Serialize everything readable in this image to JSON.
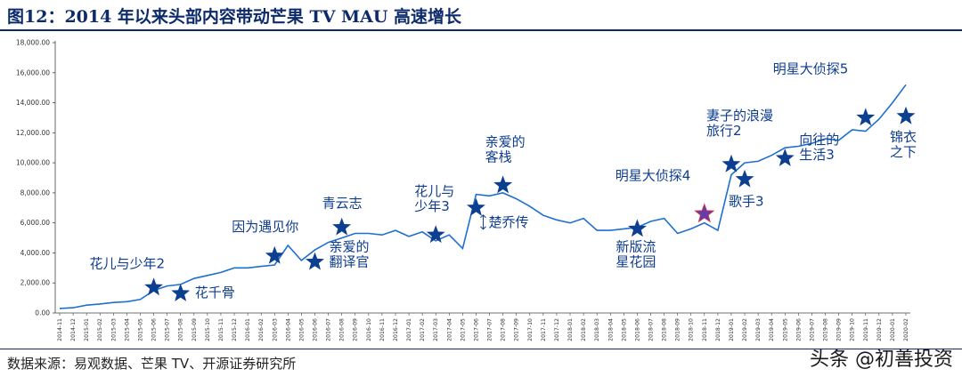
{
  "title": "图12：2014 年以来头部内容带动芒果 TV MAU 高速增长",
  "source": "数据来源：易观数据、芒果 TV、开源证券研究所",
  "watermark": "头条 @初善投资",
  "colors": {
    "line": "#1e6fd0",
    "star": "#0d3f91",
    "text": "#0e3d8f",
    "axis": "#444444"
  },
  "chart_data": {
    "type": "line",
    "title": "2014 年以来头部内容带动芒果 TV MAU 高速增长",
    "ylim": [
      0,
      18000
    ],
    "yticks": [
      0,
      2000,
      4000,
      6000,
      8000,
      10000,
      12000,
      14000,
      16000,
      18000
    ],
    "ytick_labels": [
      "0.00",
      "2,000.00",
      "4,000.00",
      "6,000.00",
      "8,000.00",
      "10,000.00",
      "12,000.00",
      "14,000.00",
      "16,000.00",
      "18,000.00"
    ],
    "x": [
      "2014-11",
      "2014-12",
      "2015-01",
      "2015-02",
      "2015-03",
      "2015-04",
      "2015-05",
      "2015-06",
      "2015-07",
      "2015-08",
      "2015-09",
      "2015-10",
      "2015-11",
      "2015-12",
      "2016-01",
      "2016-02",
      "2016-03",
      "2016-04",
      "2016-05",
      "2016-06",
      "2016-07",
      "2016-08",
      "2016-09",
      "2016-10",
      "2016-11",
      "2016-12",
      "2017-01",
      "2017-02",
      "2017-03",
      "2017-04",
      "2017-05",
      "2017-06",
      "2017-07",
      "2017-08",
      "2017-09",
      "2017-10",
      "2017-11",
      "2017-12",
      "2018-01",
      "2018-02",
      "2018-03",
      "2018-04",
      "2018-05",
      "2018-06",
      "2018-07",
      "2018-08",
      "2018-09",
      "2018-10",
      "2018-11",
      "2018-12",
      "2019-01",
      "2019-02",
      "2019-03",
      "2019-04",
      "2019-05",
      "2019-06",
      "2019-07",
      "2019-08",
      "2019-09",
      "2019-10",
      "2019-11",
      "2019-12",
      "2020-01",
      "2020-02"
    ],
    "series": [
      {
        "name": "MAU",
        "values": [
          300,
          350,
          520,
          600,
          700,
          750,
          900,
          1500,
          1800,
          1900,
          2300,
          2500,
          2700,
          3000,
          3000,
          3100,
          3200,
          4500,
          3500,
          4200,
          4700,
          5000,
          5300,
          5300,
          5200,
          5500,
          5100,
          5400,
          4800,
          5200,
          4300,
          7900,
          7800,
          8000,
          7600,
          7100,
          6500,
          6200,
          6000,
          6300,
          5500,
          5500,
          5600,
          5700,
          6100,
          6300,
          5300,
          5600,
          6000,
          5500,
          9200,
          10000,
          10100,
          10500,
          11000,
          11100,
          11300,
          11600,
          11500,
          12200,
          12100,
          12900,
          14000,
          15200
        ]
      }
    ],
    "annotations": [
      {
        "label": "花儿与少年2",
        "x_index": 7,
        "value": 1700
      },
      {
        "label": "花千骨",
        "x_index": 9,
        "value": 1300
      },
      {
        "label": "因为遇见你",
        "x_index": 16,
        "value": 3800
      },
      {
        "label": "亲爱的翻译官",
        "x_index": 19,
        "value": 3400
      },
      {
        "label": "青云志",
        "x_index": 21,
        "value": 5700
      },
      {
        "label": "花儿与少年3",
        "x_index": 28,
        "value": 5200
      },
      {
        "label": "楚乔传",
        "x_index": 31,
        "value": 7000
      },
      {
        "label": "亲爱的客栈",
        "x_index": 33,
        "value": 8500
      },
      {
        "label": "新版流星花园",
        "x_index": 43,
        "value": 5600
      },
      {
        "label": "明星大侦探4",
        "x_index": 48,
        "value": 6600
      },
      {
        "label": "妻子的浪漫旅行2",
        "x_index": 50,
        "value": 9900
      },
      {
        "label": "歌手3",
        "x_index": 51,
        "value": 8900
      },
      {
        "label": "向往的生活3",
        "x_index": 54,
        "value": 10300
      },
      {
        "label": "明星大侦探5",
        "x_index": 60,
        "value": 13000
      },
      {
        "label": "锦衣之下",
        "x_index": 63,
        "value": 13100
      }
    ]
  },
  "annotation_lines": [
    [
      "花儿与少年2"
    ],
    [
      "花千骨"
    ],
    [
      "因为遇见你"
    ],
    [
      "亲爱的",
      "翻译官"
    ],
    [
      "青云志"
    ],
    [
      "花儿与",
      "少年3"
    ],
    [
      "楚乔传"
    ],
    [
      "亲爱的",
      "客栈"
    ],
    [
      "新版流",
      "星花园"
    ],
    [
      "明星大侦探4"
    ],
    [
      "妻子的浪漫",
      "旅行2"
    ],
    [
      "歌手3"
    ],
    [
      "向往的",
      "生活3"
    ],
    [
      "明星大侦探5"
    ],
    [
      "锦衣",
      "之下"
    ]
  ]
}
